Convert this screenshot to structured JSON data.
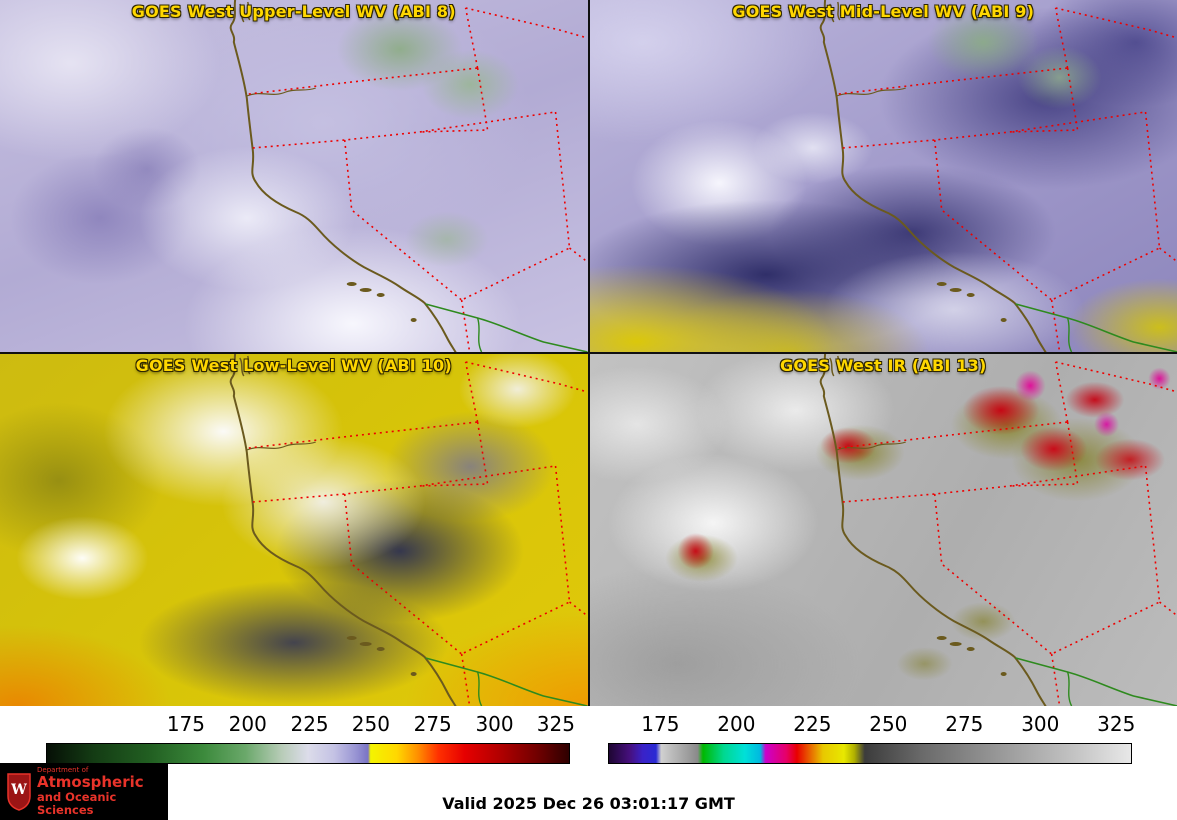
{
  "theme": {
    "title_color": "#ffd700",
    "logo_red": "#e8332a",
    "coast_color": "#6b5a1e",
    "state_border_color": "#ee0000",
    "intl_border_color": "#2e8a1e"
  },
  "panels": [
    {
      "id": "upper-wv",
      "title": "GOES West Upper-Level WV (ABI 8)"
    },
    {
      "id": "mid-wv",
      "title": "GOES West Mid-Level WV (ABI 9)"
    },
    {
      "id": "low-wv",
      "title": "GOES West Low-Level WV (ABI 10)"
    },
    {
      "id": "ir",
      "title": "GOES West IR (ABI 13)"
    }
  ],
  "colorbars": {
    "left": {
      "ticks": [
        "175",
        "200",
        "225",
        "250",
        "275",
        "300",
        "325"
      ],
      "tick_positions": [
        26.7,
        38.5,
        50.3,
        62.0,
        73.8,
        85.6,
        97.3
      ],
      "stops": [
        [
          0,
          "#060f06"
        ],
        [
          9,
          "#143c14"
        ],
        [
          20,
          "#226022"
        ],
        [
          30,
          "#3c8a3c"
        ],
        [
          38,
          "#6aa86a"
        ],
        [
          45,
          "#b8ccb8"
        ],
        [
          50,
          "#dcdcea"
        ],
        [
          55,
          "#c4c2e4"
        ],
        [
          59,
          "#9a96d4"
        ],
        [
          61.5,
          "#7a74c4"
        ],
        [
          62,
          "#f4f400"
        ],
        [
          67,
          "#ffd800"
        ],
        [
          71,
          "#ff9000"
        ],
        [
          75,
          "#ff3000"
        ],
        [
          80,
          "#e60000"
        ],
        [
          87,
          "#b00000"
        ],
        [
          94,
          "#700000"
        ],
        [
          100,
          "#2e0000"
        ]
      ]
    },
    "right": {
      "ticks": [
        "175",
        "200",
        "225",
        "250",
        "275",
        "300",
        "325"
      ],
      "tick_positions": [
        10.0,
        24.5,
        39.0,
        53.5,
        68.0,
        82.5,
        97.0
      ],
      "stops": [
        [
          0,
          "#1e0632"
        ],
        [
          4,
          "#46107e"
        ],
        [
          6.5,
          "#3a22c8"
        ],
        [
          9,
          "#2a2ad4"
        ],
        [
          10,
          "#d0d0d0"
        ],
        [
          14,
          "#a8a8a8"
        ],
        [
          17,
          "#8a8a8a"
        ],
        [
          18,
          "#00b800"
        ],
        [
          22,
          "#00d890"
        ],
        [
          26,
          "#00e0d8"
        ],
        [
          29,
          "#00b8e0"
        ],
        [
          30,
          "#cc00cc"
        ],
        [
          34,
          "#e60066"
        ],
        [
          36,
          "#e80000"
        ],
        [
          41,
          "#e8c800"
        ],
        [
          45,
          "#e8e800"
        ],
        [
          47,
          "#b0b000"
        ],
        [
          49,
          "#3c3c3c"
        ],
        [
          60,
          "#6a6a6a"
        ],
        [
          75,
          "#999999"
        ],
        [
          90,
          "#c6c6c6"
        ],
        [
          100,
          "#e8e8e8"
        ]
      ]
    }
  },
  "footer": {
    "valid_label": "Valid 2025 Dec 26 03:01:17 GMT",
    "logo": {
      "dept": "Department of",
      "line1": "Atmospheric",
      "line2": "and Oceanic Sciences",
      "crest_letter": "W"
    }
  }
}
